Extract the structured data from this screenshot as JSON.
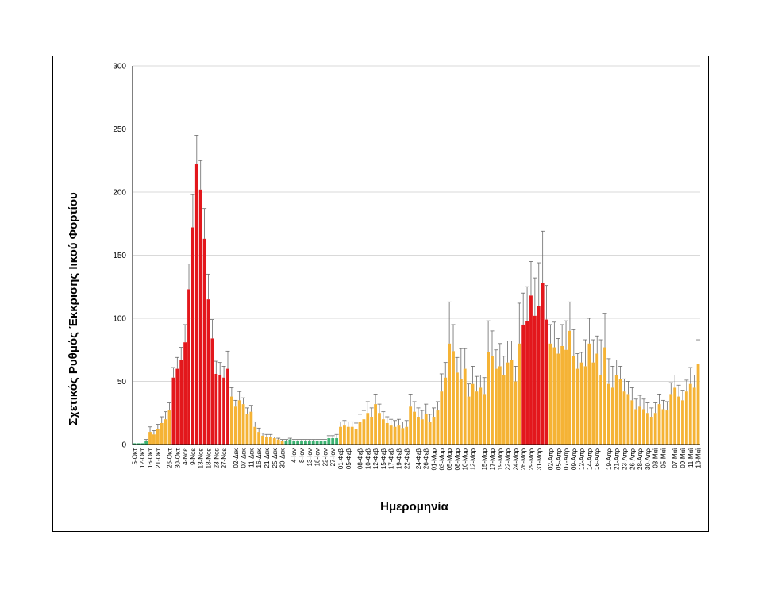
{
  "chart_data": {
    "type": "bar",
    "title": "",
    "xlabel": "Ημερομηνία",
    "ylabel": "Σχετικός Ρυθμός Έκκρισης Ιικού Φορτίου",
    "ylim": [
      0,
      300
    ],
    "yticks": [
      0,
      50,
      100,
      150,
      200,
      250,
      300
    ],
    "grid": true,
    "legend": "none",
    "colors": {
      "red": "#e3171c",
      "orange": "#f5b335",
      "green": "#3cb371",
      "axis": "#000000",
      "grid": "#d9d9d9",
      "error": "#6b6b6b"
    },
    "xtick_labels": [
      "5-Οκτ",
      "12-Οκτ",
      "16-Οκτ",
      "21-Οκτ",
      "26-Οκτ",
      "30-Οκτ",
      "4-Νοε",
      "9-Νοε",
      "13-Νοε",
      "18-Νοε",
      "23-Νοε",
      "27-Νοε",
      "02-Δεκ",
      "07-Δεκ",
      "11-Δεκ",
      "16-Δεκ",
      "21-Δεκ",
      "25-Δεκ",
      "30-Δεκ",
      "4-Ιαν",
      "8-Ιαν",
      "13-Ιαν",
      "18-Ιαν",
      "22-Ιαν",
      "27-Ιαν",
      "01-Φεβ",
      "05-Φεβ",
      "08-Φεβ",
      "10-Φεβ",
      "12-Φεβ",
      "15-Φεβ",
      "17-Φεβ",
      "19-Φεβ",
      "22-Φεβ",
      "24-Φεβ",
      "26-Φεβ",
      "01-Μαρ",
      "03-Μαρ",
      "05-Μαρ",
      "08-Μαρ",
      "10-Μαρ",
      "12-Μαρ",
      "15-Μαρ",
      "17-Μαρ",
      "19-Μαρ",
      "22-Μαρ",
      "24-Μαρ",
      "26-Μαρ",
      "29-Μαρ",
      "31-Μαρ",
      "02-Απρ",
      "05-Απρ",
      "07-Απρ",
      "09-Απρ",
      "12-Απρ",
      "14-Απρ",
      "16-Απρ",
      "19-Απρ",
      "21-Απρ",
      "23-Απρ",
      "26-Απρ",
      "28-Απρ",
      "30-Απρ",
      "03-Μαϊ",
      "05-Μαϊ",
      "07-Μαϊ",
      "09-Μαϊ",
      "11-Μαϊ",
      "13-Μαϊ"
    ],
    "values": [
      1,
      1,
      1,
      3,
      10,
      8,
      12,
      17,
      20,
      27,
      53,
      60,
      67,
      81,
      123,
      172,
      222,
      202,
      163,
      115,
      84,
      56,
      55,
      53,
      60,
      38,
      30,
      35,
      32,
      24,
      26,
      14,
      10,
      7,
      6,
      6,
      5,
      4,
      3,
      3,
      4,
      3,
      3,
      3,
      3,
      3,
      3,
      3,
      3,
      3,
      5,
      5,
      5,
      14,
      15,
      14,
      14,
      12,
      18,
      20,
      25,
      22,
      32,
      25,
      20,
      17,
      15,
      14,
      15,
      13,
      14,
      30,
      26,
      22,
      20,
      24,
      18,
      22,
      27,
      42,
      53,
      80,
      74,
      57,
      52,
      60,
      38,
      48,
      42,
      45,
      40,
      73,
      70,
      60,
      62,
      55,
      65,
      67,
      50,
      80,
      95,
      98,
      118,
      102,
      110,
      128,
      99,
      80,
      77,
      72,
      78,
      75,
      90,
      70,
      60,
      65,
      62,
      80,
      65,
      72,
      55,
      77,
      48,
      45,
      55,
      52,
      42,
      40,
      35,
      28,
      30,
      28,
      25,
      22,
      25,
      32,
      28,
      27,
      40,
      45,
      38,
      35,
      42,
      48,
      45,
      64
    ],
    "errors": [
      0,
      0,
      0,
      1,
      4,
      3,
      4,
      5,
      6,
      6,
      8,
      9,
      10,
      14,
      20,
      26,
      23,
      23,
      24,
      20,
      15,
      10,
      10,
      9,
      14,
      7,
      5,
      7,
      5,
      5,
      5,
      4,
      3,
      2,
      2,
      2,
      1,
      1,
      1,
      1,
      1,
      1,
      1,
      1,
      1,
      1,
      1,
      1,
      1,
      1,
      2,
      2,
      3,
      4,
      4,
      4,
      4,
      5,
      6,
      7,
      9,
      7,
      8,
      7,
      6,
      5,
      5,
      5,
      5,
      5,
      5,
      10,
      8,
      7,
      7,
      8,
      6,
      7,
      7,
      14,
      12,
      33,
      21,
      12,
      24,
      16,
      10,
      14,
      12,
      10,
      13,
      25,
      20,
      15,
      18,
      15,
      17,
      15,
      12,
      32,
      25,
      27,
      27,
      30,
      34,
      41,
      27,
      15,
      20,
      12,
      17,
      23,
      23,
      21,
      12,
      8,
      21,
      20,
      18,
      14,
      28,
      27,
      20,
      17,
      12,
      10,
      10,
      10,
      10,
      8,
      9,
      8,
      8,
      7,
      8,
      8,
      7,
      7,
      9,
      10,
      9,
      8,
      9,
      13,
      10,
      19
    ],
    "colors_by_bar": [
      "g",
      "g",
      "g",
      "g",
      "o",
      "o",
      "o",
      "o",
      "o",
      "o",
      "r",
      "r",
      "r",
      "r",
      "r",
      "r",
      "r",
      "r",
      "r",
      "r",
      "r",
      "r",
      "r",
      "r",
      "r",
      "o",
      "o",
      "o",
      "o",
      "o",
      "o",
      "o",
      "o",
      "o",
      "o",
      "o",
      "o",
      "o",
      "o",
      "g",
      "g",
      "g",
      "g",
      "g",
      "g",
      "g",
      "g",
      "g",
      "g",
      "g",
      "g",
      "g",
      "g",
      "o",
      "o",
      "o",
      "o",
      "o",
      "o",
      "o",
      "o",
      "o",
      "o",
      "o",
      "o",
      "o",
      "o",
      "o",
      "o",
      "o",
      "o",
      "o",
      "o",
      "o",
      "o",
      "o",
      "o",
      "o",
      "o",
      "o",
      "o",
      "o",
      "o",
      "o",
      "o",
      "o",
      "o",
      "o",
      "o",
      "o",
      "o",
      "o",
      "o",
      "o",
      "o",
      "o",
      "o",
      "o",
      "o",
      "o",
      "r",
      "r",
      "r",
      "r",
      "r",
      "r",
      "r",
      "o",
      "o",
      "o",
      "o",
      "o",
      "o",
      "o",
      "o",
      "o",
      "o",
      "o",
      "o",
      "o",
      "o",
      "o",
      "o",
      "o",
      "o",
      "o",
      "o",
      "o",
      "o",
      "o",
      "o",
      "o",
      "o",
      "o",
      "o",
      "o",
      "o",
      "o",
      "o",
      "o",
      "o",
      "o",
      "o",
      "o",
      "o",
      "o",
      "o",
      "o",
      "o",
      "o"
    ]
  }
}
